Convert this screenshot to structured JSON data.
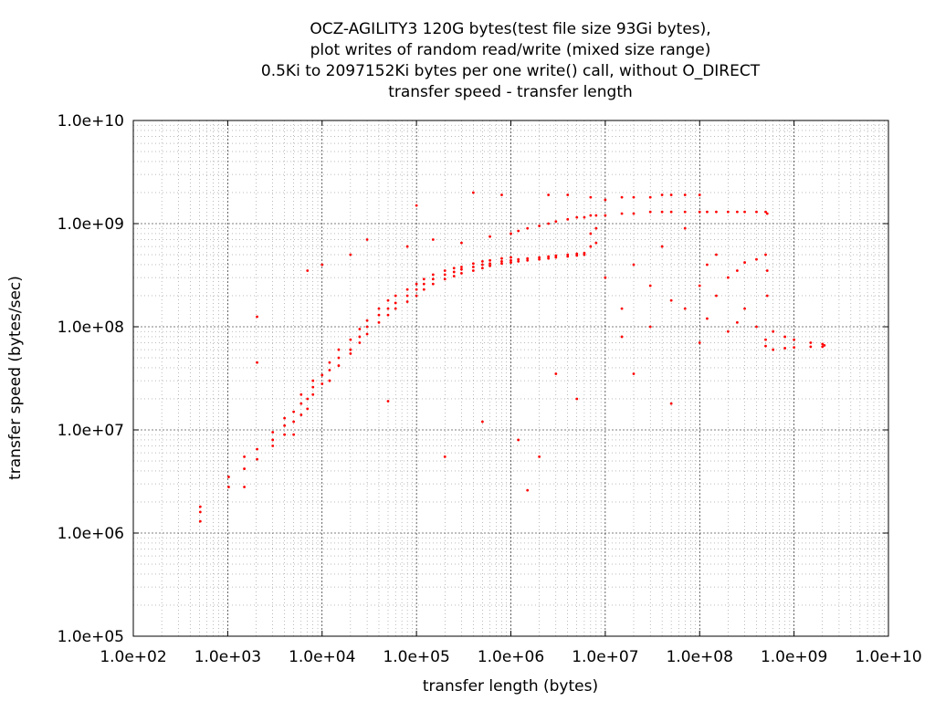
{
  "chart_data": {
    "type": "scatter",
    "title_lines": [
      "OCZ-AGILITY3 120G bytes(test file size 93Gi bytes),",
      "plot writes of random read/write (mixed size range)",
      "0.5Ki to 2097152Ki bytes per one write() call, without O_DIRECT",
      "transfer speed - transfer length"
    ],
    "xlabel": "transfer length (bytes)",
    "ylabel": "transfer speed (bytes/sec)",
    "x_scale": "log",
    "y_scale": "log",
    "xlim": [
      100,
      10000000000
    ],
    "ylim": [
      100000,
      10000000000
    ],
    "x_ticks": [
      "1.0e+02",
      "1.0e+03",
      "1.0e+04",
      "1.0e+05",
      "1.0e+06",
      "1.0e+07",
      "1.0e+08",
      "1.0e+09",
      "1.0e+10"
    ],
    "y_ticks": [
      "1.0e+05",
      "1.0e+06",
      "1.0e+07",
      "1.0e+08",
      "1.0e+09",
      "1.0e+10"
    ],
    "grid": true,
    "point_color": "#ff0000",
    "points": [
      [
        512,
        1300000
      ],
      [
        512,
        1600000
      ],
      [
        512,
        1800000
      ],
      [
        1024,
        2800000
      ],
      [
        1024,
        3500000
      ],
      [
        1500,
        4200000
      ],
      [
        1500,
        5500000
      ],
      [
        1500,
        2800000
      ],
      [
        2048,
        6500000
      ],
      [
        2048,
        5200000
      ],
      [
        2048,
        45000000
      ],
      [
        2048,
        125000000
      ],
      [
        3000,
        8000000
      ],
      [
        3000,
        9500000
      ],
      [
        3000,
        7000000
      ],
      [
        4000,
        11000000
      ],
      [
        4000,
        9000000
      ],
      [
        4000,
        13000000
      ],
      [
        5000,
        9000000
      ],
      [
        5000,
        15000000
      ],
      [
        5000,
        12000000
      ],
      [
        6000,
        14000000
      ],
      [
        6000,
        18000000
      ],
      [
        6000,
        22000000
      ],
      [
        7000,
        20000000
      ],
      [
        7000,
        16000000
      ],
      [
        7000,
        350000000
      ],
      [
        8000,
        26000000
      ],
      [
        8000,
        22000000
      ],
      [
        8000,
        30000000
      ],
      [
        10000,
        28000000
      ],
      [
        10000,
        34000000
      ],
      [
        10000,
        400000000
      ],
      [
        12000,
        38000000
      ],
      [
        12000,
        45000000
      ],
      [
        12000,
        30000000
      ],
      [
        15000,
        50000000
      ],
      [
        15000,
        42000000
      ],
      [
        15000,
        60000000
      ],
      [
        20000,
        60000000
      ],
      [
        20000,
        75000000
      ],
      [
        20000,
        55000000
      ],
      [
        20000,
        500000000
      ],
      [
        25000,
        80000000
      ],
      [
        25000,
        95000000
      ],
      [
        25000,
        70000000
      ],
      [
        30000,
        100000000
      ],
      [
        30000,
        85000000
      ],
      [
        30000,
        115000000
      ],
      [
        30000,
        700000000
      ],
      [
        40000,
        130000000
      ],
      [
        40000,
        110000000
      ],
      [
        40000,
        150000000
      ],
      [
        50000,
        150000000
      ],
      [
        50000,
        130000000
      ],
      [
        50000,
        180000000
      ],
      [
        50000,
        19000000
      ],
      [
        60000,
        170000000
      ],
      [
        60000,
        150000000
      ],
      [
        60000,
        200000000
      ],
      [
        80000,
        200000000
      ],
      [
        80000,
        175000000
      ],
      [
        80000,
        230000000
      ],
      [
        80000,
        600000000
      ],
      [
        100000,
        230000000
      ],
      [
        100000,
        200000000
      ],
      [
        100000,
        260000000
      ],
      [
        100000,
        1500000000
      ],
      [
        120000,
        260000000
      ],
      [
        120000,
        230000000
      ],
      [
        120000,
        290000000
      ],
      [
        150000,
        290000000
      ],
      [
        150000,
        260000000
      ],
      [
        150000,
        320000000
      ],
      [
        150000,
        700000000
      ],
      [
        200000,
        320000000
      ],
      [
        200000,
        290000000
      ],
      [
        200000,
        350000000
      ],
      [
        200000,
        5500000
      ],
      [
        250000,
        340000000
      ],
      [
        250000,
        310000000
      ],
      [
        250000,
        370000000
      ],
      [
        300000,
        360000000
      ],
      [
        300000,
        330000000
      ],
      [
        300000,
        380000000
      ],
      [
        300000,
        650000000
      ],
      [
        400000,
        380000000
      ],
      [
        400000,
        350000000
      ],
      [
        400000,
        410000000
      ],
      [
        400000,
        2000000000
      ],
      [
        500000,
        400000000
      ],
      [
        500000,
        370000000
      ],
      [
        500000,
        430000000
      ],
      [
        500000,
        12000000
      ],
      [
        600000,
        410000000
      ],
      [
        600000,
        390000000
      ],
      [
        600000,
        440000000
      ],
      [
        600000,
        750000000
      ],
      [
        800000,
        430000000
      ],
      [
        800000,
        410000000
      ],
      [
        800000,
        460000000
      ],
      [
        800000,
        1900000000
      ],
      [
        1000000,
        440000000
      ],
      [
        1000000,
        420000000
      ],
      [
        1000000,
        470000000
      ],
      [
        1000000,
        800000000
      ],
      [
        1200000,
        450000000
      ],
      [
        1200000,
        430000000
      ],
      [
        1200000,
        850000000
      ],
      [
        1200000,
        8000000
      ],
      [
        1500000,
        460000000
      ],
      [
        1500000,
        440000000
      ],
      [
        1500000,
        900000000
      ],
      [
        1500000,
        2600000
      ],
      [
        2000000,
        470000000
      ],
      [
        2000000,
        450000000
      ],
      [
        2000000,
        950000000
      ],
      [
        2000000,
        5500000
      ],
      [
        2500000,
        480000000
      ],
      [
        2500000,
        460000000
      ],
      [
        2500000,
        1000000000
      ],
      [
        2500000,
        1900000000
      ],
      [
        3000000,
        490000000
      ],
      [
        3000000,
        470000000
      ],
      [
        3000000,
        1050000000
      ],
      [
        3000000,
        35000000
      ],
      [
        4000000,
        500000000
      ],
      [
        4000000,
        480000000
      ],
      [
        4000000,
        1100000000
      ],
      [
        4000000,
        1900000000
      ],
      [
        5000000,
        510000000
      ],
      [
        5000000,
        490000000
      ],
      [
        5000000,
        1150000000
      ],
      [
        5000000,
        20000000
      ],
      [
        6000000,
        520000000
      ],
      [
        6000000,
        500000000
      ],
      [
        6000000,
        1150000000
      ],
      [
        7000000,
        600000000
      ],
      [
        7000000,
        800000000
      ],
      [
        7000000,
        1200000000
      ],
      [
        7000000,
        1800000000
      ],
      [
        8000000,
        650000000
      ],
      [
        8000000,
        900000000
      ],
      [
        8000000,
        1200000000
      ],
      [
        10000000,
        1200000000
      ],
      [
        10000000,
        300000000
      ],
      [
        10000000,
        1700000000
      ],
      [
        15000000,
        1250000000
      ],
      [
        15000000,
        150000000
      ],
      [
        15000000,
        1800000000
      ],
      [
        15000000,
        80000000
      ],
      [
        20000000,
        1250000000
      ],
      [
        20000000,
        400000000
      ],
      [
        20000000,
        1800000000
      ],
      [
        20000000,
        35000000
      ],
      [
        30000000,
        1300000000
      ],
      [
        30000000,
        250000000
      ],
      [
        30000000,
        1800000000
      ],
      [
        30000000,
        100000000
      ],
      [
        40000000,
        1300000000
      ],
      [
        40000000,
        600000000
      ],
      [
        40000000,
        1900000000
      ],
      [
        50000000,
        1300000000
      ],
      [
        50000000,
        180000000
      ],
      [
        50000000,
        1900000000
      ],
      [
        50000000,
        18000000
      ],
      [
        70000000,
        1300000000
      ],
      [
        70000000,
        900000000
      ],
      [
        70000000,
        1900000000
      ],
      [
        70000000,
        150000000
      ],
      [
        100000000,
        1300000000
      ],
      [
        100000000,
        250000000
      ],
      [
        100000000,
        1900000000
      ],
      [
        100000000,
        70000000
      ],
      [
        120000000,
        1300000000
      ],
      [
        120000000,
        400000000
      ],
      [
        120000000,
        120000000
      ],
      [
        150000000,
        1300000000
      ],
      [
        150000000,
        500000000
      ],
      [
        150000000,
        200000000
      ],
      [
        200000000,
        1300000000
      ],
      [
        200000000,
        300000000
      ],
      [
        200000000,
        90000000
      ],
      [
        250000000,
        1300000000
      ],
      [
        250000000,
        350000000
      ],
      [
        250000000,
        110000000
      ],
      [
        300000000,
        1300000000
      ],
      [
        300000000,
        420000000
      ],
      [
        300000000,
        150000000
      ],
      [
        400000000,
        1300000000
      ],
      [
        400000000,
        450000000
      ],
      [
        400000000,
        100000000
      ],
      [
        500000000,
        1300000000
      ],
      [
        500000000,
        500000000
      ],
      [
        500000000,
        75000000
      ],
      [
        500000000,
        65000000
      ],
      [
        520000000,
        1250000000
      ],
      [
        520000000,
        200000000
      ],
      [
        520000000,
        350000000
      ],
      [
        600000000,
        90000000
      ],
      [
        600000000,
        60000000
      ],
      [
        800000000,
        80000000
      ],
      [
        800000000,
        62000000
      ],
      [
        1000000000,
        75000000
      ],
      [
        1000000000,
        63000000
      ],
      [
        1500000000,
        70000000
      ],
      [
        1500000000,
        64000000
      ],
      [
        2000000000,
        68000000
      ],
      [
        2000000000,
        64000000
      ],
      [
        2097152000,
        66000000
      ]
    ]
  }
}
